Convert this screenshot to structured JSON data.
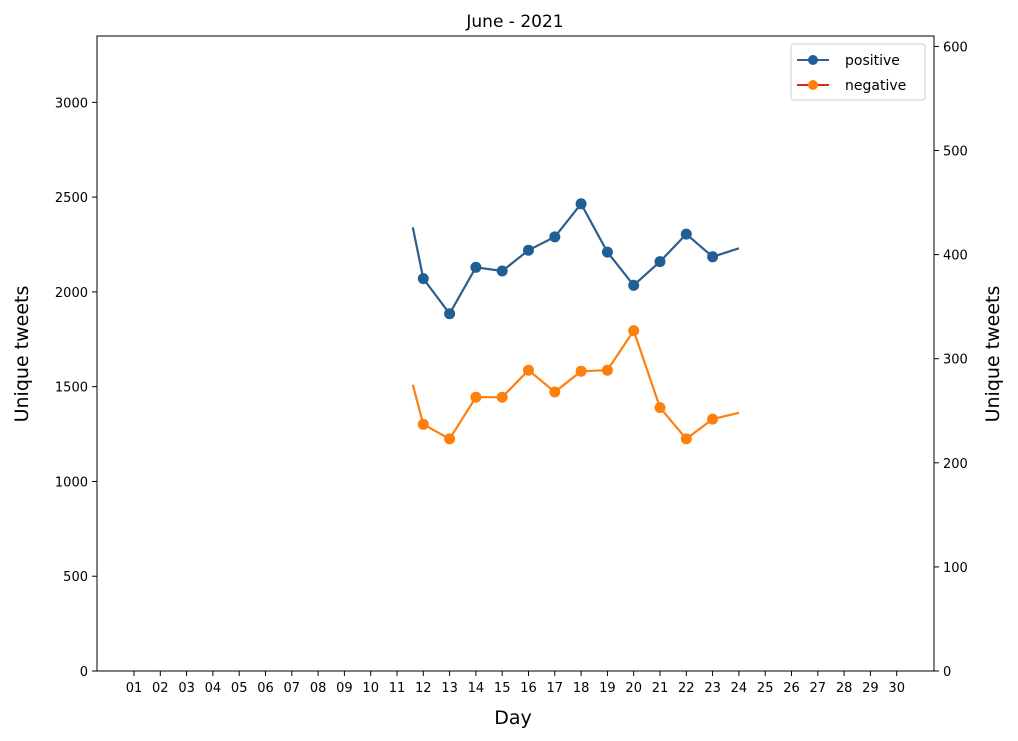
{
  "chart_data": {
    "type": "line",
    "title": "June - 2021",
    "xlabel": "Day",
    "ylabel_left": "Unique tweets",
    "ylabel_right": "Unique tweets",
    "categories": [
      "01",
      "02",
      "03",
      "04",
      "05",
      "06",
      "07",
      "08",
      "09",
      "10",
      "11",
      "12",
      "13",
      "14",
      "15",
      "16",
      "17",
      "18",
      "19",
      "20",
      "21",
      "22",
      "23",
      "24",
      "25",
      "26",
      "27",
      "28",
      "29",
      "30"
    ],
    "ylim_left": [
      0,
      3350
    ],
    "ylim_right": [
      0,
      610
    ],
    "yticks_left": [
      0,
      500,
      1000,
      1500,
      2000,
      2500,
      3000
    ],
    "yticks_right": [
      0,
      100,
      200,
      300,
      400,
      500,
      600
    ],
    "legend_position": "top-right",
    "grid": false,
    "series": [
      {
        "name": "positive",
        "axis": "left",
        "color": "#2c5f8e",
        "marker_color": "#1f5f95",
        "x": [
          "12",
          "13",
          "14",
          "15",
          "16",
          "17",
          "18",
          "19",
          "20",
          "21",
          "22",
          "23"
        ],
        "values": [
          2070,
          1885,
          2130,
          2110,
          2220,
          2290,
          2465,
          2210,
          2035,
          2160,
          2305,
          2185
        ],
        "lead_in": {
          "x": 11.6,
          "value": 2340
        },
        "lead_out": {
          "x": 24.0,
          "value": 2230
        }
      },
      {
        "name": "negative",
        "axis": "right",
        "color": "#ff7f0e",
        "marker_color": "#ff7f0e",
        "x": [
          "12",
          "13",
          "14",
          "15",
          "16",
          "17",
          "18",
          "19",
          "20",
          "21",
          "22",
          "23"
        ],
        "values": [
          237,
          223,
          263,
          263,
          289,
          268,
          288,
          289,
          327,
          253,
          223,
          242
        ],
        "lead_in": {
          "x": 11.6,
          "value": 275
        },
        "lead_out": {
          "x": 24.0,
          "value": 248
        }
      }
    ]
  }
}
